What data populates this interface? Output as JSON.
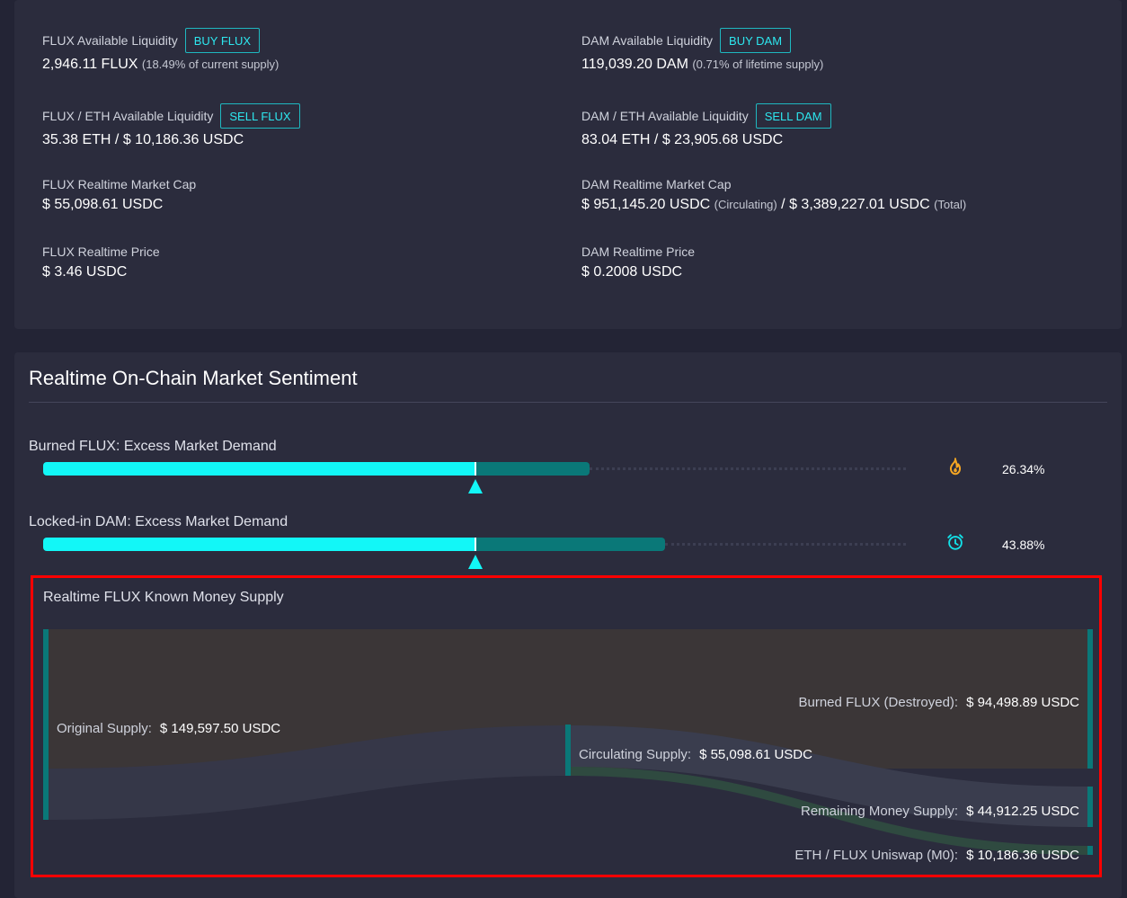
{
  "liquidity": {
    "flux_available": {
      "label": "FLUX Available Liquidity",
      "button": "BUY FLUX",
      "value": "2,946.11 FLUX",
      "note": "(18.49% of current supply)"
    },
    "dam_available": {
      "label": "DAM Available Liquidity",
      "button": "BUY DAM",
      "value": "119,039.20 DAM",
      "note": "(0.71% of lifetime supply)"
    },
    "flux_eth": {
      "label": "FLUX / ETH Available Liquidity",
      "button": "SELL FLUX",
      "value": "35.38 ETH / $ 10,186.36 USDC"
    },
    "dam_eth": {
      "label": "DAM / ETH Available Liquidity",
      "button": "SELL DAM",
      "value": "83.04 ETH / $ 23,905.68 USDC"
    },
    "flux_mcap": {
      "label": "FLUX Realtime Market Cap",
      "value": "$ 55,098.61 USDC"
    },
    "dam_mcap": {
      "label": "DAM Realtime Market Cap",
      "value_circ": "$ 951,145.20 USDC",
      "note_circ": "(Circulating)",
      "sep": " / ",
      "value_total": "$ 3,389,227.01 USDC",
      "note_total": "(Total)"
    },
    "flux_price": {
      "label": "FLUX Realtime Price",
      "value": "$ 3.46 USDC"
    },
    "dam_price": {
      "label": "DAM Realtime Price",
      "value": "$ 0.2008 USDC"
    }
  },
  "sentiment": {
    "title": "Realtime On-Chain Market Sentiment",
    "meters": [
      {
        "label": "Burned FLUX: Excess Market Demand",
        "percent": "26.34%",
        "icon": "fire-icon",
        "marker_fraction": 0.5,
        "fill_fraction": 0.632
      },
      {
        "label": "Locked-in DAM: Excess Market Demand",
        "percent": "43.88%",
        "icon": "alarm-clock-icon",
        "marker_fraction": 0.5,
        "fill_fraction": 0.72
      }
    ]
  },
  "supply": {
    "title": "Realtime FLUX Known Money Supply",
    "nodes": {
      "original": {
        "label": "Original Supply:",
        "value": "$ 149,597.50 USDC",
        "amount": 149597.5
      },
      "circulating": {
        "label": "Circulating Supply:",
        "value": "$ 55,098.61 USDC",
        "amount": 55098.61
      },
      "burned": {
        "label": "Burned FLUX (Destroyed):",
        "value": "$ 94,498.89 USDC",
        "amount": 94498.89
      },
      "remaining": {
        "label": "Remaining Money Supply:",
        "value": "$ 44,912.25 USDC",
        "amount": 44912.25
      },
      "uniswap": {
        "label": "ETH / FLUX Uniswap (M0):",
        "value": "$ 10,186.36 USDC",
        "amount": 10186.36
      }
    }
  },
  "colors": {
    "accent_cyan": "#12f7f7",
    "accent_teal": "#0a7878",
    "button_text": "#2de7ef",
    "burn_icon": "#f5a623",
    "highlight": "#ff0000"
  }
}
